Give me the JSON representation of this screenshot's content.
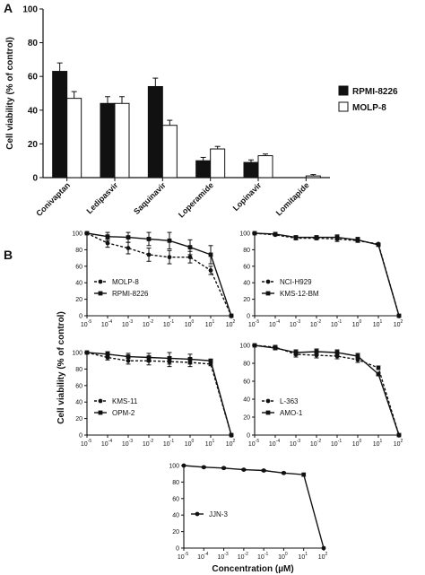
{
  "panel_labels": {
    "a": "A",
    "b": "B"
  },
  "shared_ylabel_b": "Cell viability (% of control)",
  "shared_xlabel_b": "Concentration (µM)",
  "chart_data": [
    {
      "id": "bar",
      "type": "bar",
      "categories": [
        "Conivaptan",
        "Ledipasvir",
        "Saquinavir",
        "Loperamide",
        "Lopinavir",
        "Lomitapide"
      ],
      "series": [
        {
          "name": "RPMI-8226",
          "values": [
            63,
            44,
            54,
            10,
            9,
            0
          ],
          "errors": [
            5,
            4,
            5,
            2,
            1.5,
            0
          ],
          "color": "#111111"
        },
        {
          "name": "MOLP-8",
          "values": [
            47,
            44,
            31,
            17,
            13,
            1
          ],
          "errors": [
            4,
            4,
            3,
            1.5,
            1,
            0.8
          ],
          "color": "#ffffff"
        }
      ],
      "ylabel": "Cell viability (% of control)",
      "ylim": [
        0,
        100
      ],
      "yticks": [
        "0",
        "20",
        "40",
        "60",
        "80",
        "100"
      ],
      "legend": "right"
    },
    {
      "id": "b1",
      "type": "line",
      "x": [
        -5,
        -4,
        -3,
        -2,
        -1,
        0,
        1,
        2
      ],
      "xticks": [
        [
          "10",
          "-5"
        ],
        [
          "10",
          "-4"
        ],
        [
          "10",
          "-3"
        ],
        [
          "10",
          "-2"
        ],
        [
          "10",
          "-1"
        ],
        [
          "10",
          "0"
        ],
        [
          "10",
          "1"
        ],
        [
          "10",
          "2"
        ]
      ],
      "xscale": "log",
      "ylim": [
        0,
        100
      ],
      "yticks": [
        "0",
        "20",
        "40",
        "60",
        "80",
        "100"
      ],
      "legend": "bottom-left",
      "series": [
        {
          "name": "MOLP-8",
          "style": "dashed",
          "marker": "circle",
          "values": [
            100,
            88,
            82,
            74,
            71,
            71,
            55,
            0
          ],
          "errors": [
            0,
            5,
            7,
            8,
            8,
            7,
            5,
            0
          ]
        },
        {
          "name": "RPMI-8226",
          "style": "solid",
          "marker": "square",
          "values": [
            100,
            96,
            95,
            93,
            91,
            83,
            74,
            0
          ],
          "errors": [
            0,
            5,
            6,
            8,
            10,
            9,
            11,
            0
          ]
        }
      ]
    },
    {
      "id": "b2",
      "type": "line",
      "x": [
        -5,
        -4,
        -3,
        -2,
        -1,
        0,
        1,
        2
      ],
      "xticks": [
        [
          "10",
          "-5"
        ],
        [
          "10",
          "-4"
        ],
        [
          "10",
          "-3"
        ],
        [
          "10",
          "-2"
        ],
        [
          "10",
          "-1"
        ],
        [
          "10",
          "0"
        ],
        [
          "10",
          "1"
        ],
        [
          "10",
          "2"
        ]
      ],
      "xscale": "log",
      "ylim": [
        0,
        100
      ],
      "yticks": [
        "0",
        "20",
        "40",
        "60",
        "80",
        "100"
      ],
      "legend": "bottom-left",
      "series": [
        {
          "name": "NCI-H929",
          "style": "dashed",
          "marker": "circle",
          "values": [
            100,
            98,
            94,
            94,
            93,
            91,
            87,
            0
          ],
          "errors": [
            0,
            1,
            2,
            2,
            3,
            2,
            1,
            0
          ]
        },
        {
          "name": "KMS-12-BM",
          "style": "solid",
          "marker": "square",
          "values": [
            100,
            99,
            95,
            95,
            95,
            92,
            86,
            0
          ],
          "errors": [
            0,
            2,
            2,
            2,
            3,
            3,
            1,
            0
          ]
        }
      ]
    },
    {
      "id": "b3",
      "type": "line",
      "x": [
        -5,
        -4,
        -3,
        -2,
        -1,
        0,
        1,
        2
      ],
      "xticks": [
        [
          "10",
          "-5"
        ],
        [
          "10",
          "-4"
        ],
        [
          "10",
          "-3"
        ],
        [
          "10",
          "-2"
        ],
        [
          "10",
          "-1"
        ],
        [
          "10",
          "0"
        ],
        [
          "10",
          "1"
        ],
        [
          "10",
          "2"
        ]
      ],
      "xscale": "log",
      "ylim": [
        0,
        100
      ],
      "yticks": [
        "0",
        "20",
        "40",
        "60",
        "80",
        "100"
      ],
      "legend": "bottom-left",
      "series": [
        {
          "name": "KMS-11",
          "style": "dashed",
          "marker": "circle",
          "values": [
            100,
            94,
            90,
            90,
            89,
            88,
            86,
            0
          ],
          "errors": [
            0,
            3,
            4,
            5,
            6,
            5,
            2,
            0
          ]
        },
        {
          "name": "OPM-2",
          "style": "solid",
          "marker": "square",
          "values": [
            100,
            98,
            95,
            94,
            93,
            92,
            90,
            0
          ],
          "errors": [
            0,
            3,
            4,
            5,
            7,
            6,
            2,
            0
          ]
        }
      ]
    },
    {
      "id": "b4",
      "type": "line",
      "x": [
        -5,
        -4,
        -3,
        -2,
        -1,
        0,
        1,
        2
      ],
      "xticks": [
        [
          "10",
          "-5"
        ],
        [
          "10",
          "-4"
        ],
        [
          "10",
          "-3"
        ],
        [
          "10",
          "-2"
        ],
        [
          "10",
          "-1"
        ],
        [
          "10",
          "0"
        ],
        [
          "10",
          "1"
        ],
        [
          "10",
          "2"
        ]
      ],
      "xscale": "log",
      "ylim": [
        0,
        100
      ],
      "yticks": [
        "0",
        "20",
        "40",
        "60",
        "80",
        "100"
      ],
      "legend": "bottom-left",
      "series": [
        {
          "name": "L-363",
          "style": "dashed",
          "marker": "circle",
          "values": [
            100,
            98,
            90,
            89,
            88,
            84,
            75,
            0
          ],
          "errors": [
            0,
            2,
            3,
            3,
            3,
            3,
            2,
            0
          ]
        },
        {
          "name": "AMO-1",
          "style": "solid",
          "marker": "square",
          "values": [
            100,
            97,
            92,
            93,
            92,
            88,
            68,
            0
          ],
          "errors": [
            0,
            2,
            3,
            3,
            3,
            3,
            2,
            0
          ]
        }
      ]
    },
    {
      "id": "b5",
      "type": "line",
      "x": [
        -5,
        -4,
        -3,
        -2,
        -1,
        0,
        1,
        2
      ],
      "xticks": [
        [
          "10",
          "-5"
        ],
        [
          "10",
          "-4"
        ],
        [
          "10",
          "-3"
        ],
        [
          "10",
          "-2"
        ],
        [
          "10",
          "-1"
        ],
        [
          "10",
          "0"
        ],
        [
          "10",
          "1"
        ],
        [
          "10",
          "2"
        ]
      ],
      "xscale": "log",
      "ylim": [
        0,
        100
      ],
      "yticks": [
        "0",
        "20",
        "40",
        "60",
        "80",
        "100"
      ],
      "legend": "bottom-left",
      "series": [
        {
          "name": "JJN-3",
          "style": "solid",
          "marker": "circle",
          "values": [
            100,
            98,
            97,
            95,
            94,
            91,
            89,
            0
          ],
          "errors": [
            0,
            1,
            1,
            1,
            1,
            1,
            2,
            0
          ]
        }
      ]
    }
  ]
}
